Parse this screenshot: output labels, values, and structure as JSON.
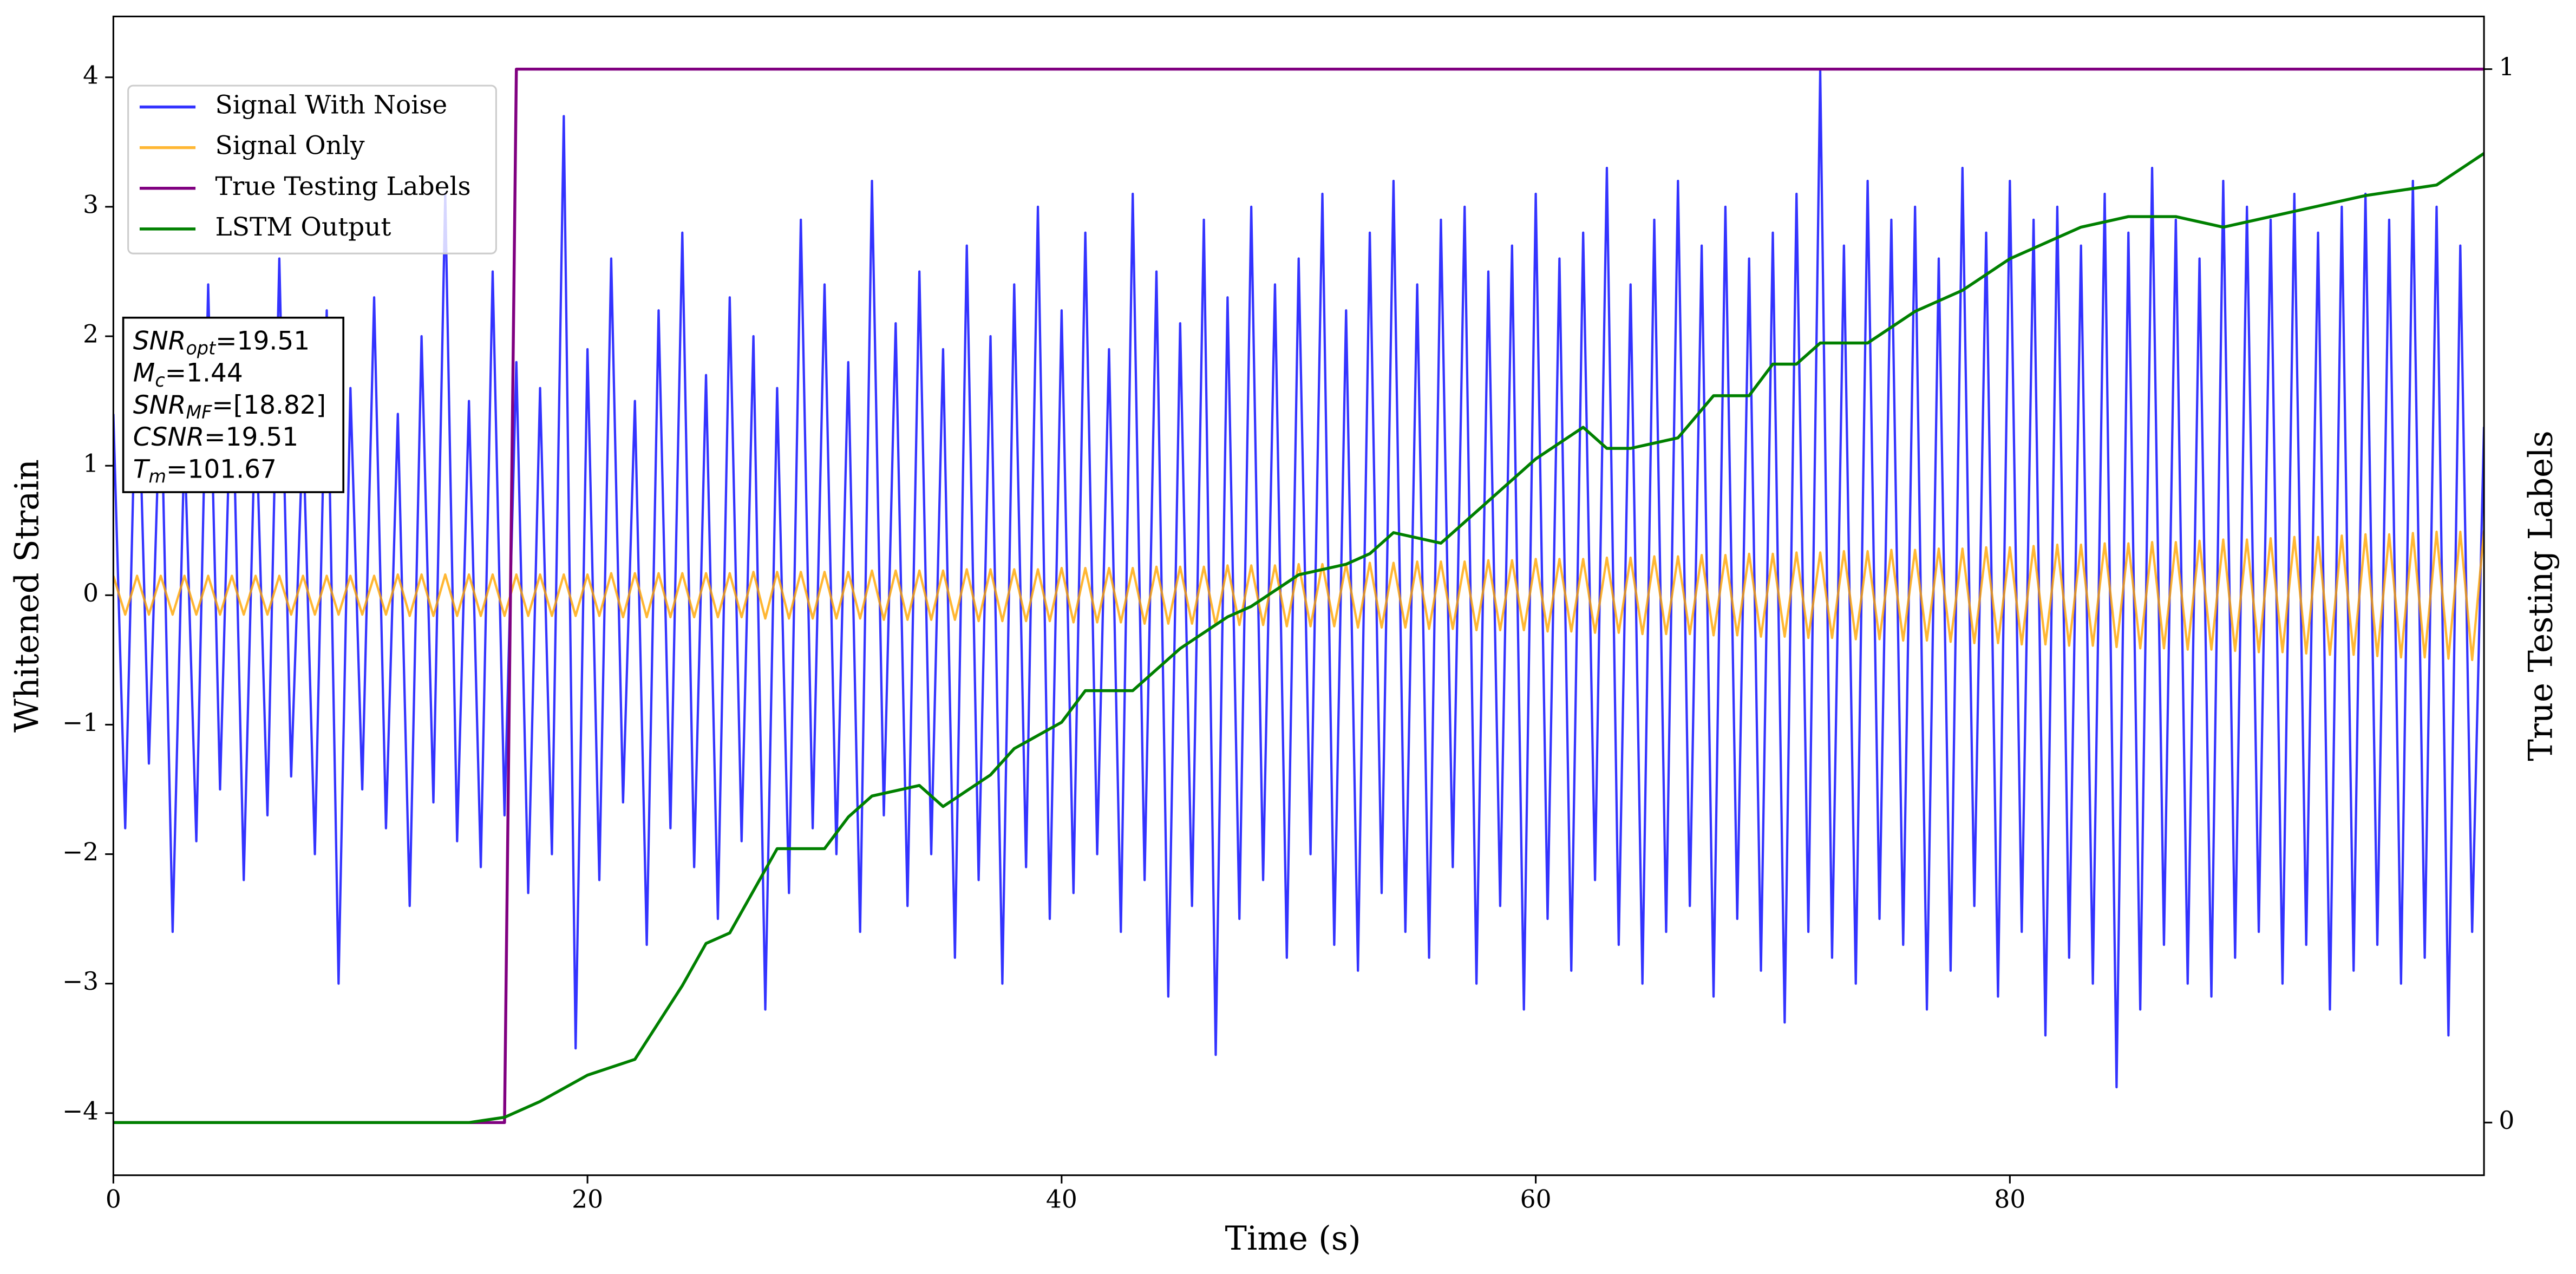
{
  "chart_data": {
    "type": "line",
    "xlabel": "Time (s)",
    "ylabel": "Whitened Strain",
    "y2label": "True Testing Labels",
    "xlim": [
      0,
      100
    ],
    "xticks": [
      0,
      20,
      40,
      60,
      80
    ],
    "ylim": [
      -4.48,
      4.47
    ],
    "yticks": [
      {
        "value": -4,
        "label": "−4"
      },
      {
        "value": -3,
        "label": "−3"
      },
      {
        "value": -2,
        "label": "−2"
      },
      {
        "value": -1,
        "label": "−1"
      },
      0,
      1,
      2,
      3,
      4
    ],
    "y2lim": [
      -0.05,
      1.05
    ],
    "y2ticks": [
      0,
      1
    ],
    "grid": false,
    "legend": "upper left",
    "annotation": [
      {
        "symbol": "SNR",
        "sub": "opt",
        "text": "=19.51"
      },
      {
        "symbol": "M",
        "sub": "c",
        "text": "=1.44"
      },
      {
        "symbol": "SNR",
        "sub": "MF",
        "text": "=[18.82]"
      },
      {
        "symbol": "CSNR",
        "text": "=19.51"
      },
      {
        "symbol": "T",
        "sub": "m",
        "text": "=101.67"
      }
    ],
    "x": [
      0,
      0.5,
      1,
      1.5,
      2,
      2.5,
      3,
      3.5,
      4,
      4.5,
      5,
      5.5,
      6,
      6.5,
      7,
      7.5,
      8,
      8.5,
      9,
      9.5,
      10,
      10.5,
      11,
      11.5,
      12,
      12.5,
      13,
      13.5,
      14,
      14.5,
      15,
      15.5,
      16,
      16.5,
      17,
      17.5,
      18,
      18.5,
      19,
      19.5,
      20,
      20.5,
      21,
      21.5,
      22,
      22.5,
      23,
      23.5,
      24,
      24.5,
      25,
      25.5,
      26,
      26.5,
      27,
      27.5,
      28,
      28.5,
      29,
      29.5,
      30,
      30.5,
      31,
      31.5,
      32,
      32.5,
      33,
      33.5,
      34,
      34.5,
      35,
      35.5,
      36,
      36.5,
      37,
      37.5,
      38,
      38.5,
      39,
      39.5,
      40,
      40.5,
      41,
      41.5,
      42,
      42.5,
      43,
      43.5,
      44,
      44.5,
      45,
      45.5,
      46,
      46.5,
      47,
      47.5,
      48,
      48.5,
      49,
      49.5,
      50,
      50.5,
      51,
      51.5,
      52,
      52.5,
      53,
      53.5,
      54,
      54.5,
      55,
      55.5,
      56,
      56.5,
      57,
      57.5,
      58,
      58.5,
      59,
      59.5,
      60,
      60.5,
      61,
      61.5,
      62,
      62.5,
      63,
      63.5,
      64,
      64.5,
      65,
      65.5,
      66,
      66.5,
      67,
      67.5,
      68,
      68.5,
      69,
      69.5,
      70,
      70.5,
      71,
      71.5,
      72,
      72.5,
      73,
      73.5,
      74,
      74.5,
      75,
      75.5,
      76,
      76.5,
      77,
      77.5,
      78,
      78.5,
      79,
      79.5,
      80,
      80.5,
      81,
      81.5,
      82,
      82.5,
      83,
      83.5,
      84,
      84.5,
      85,
      85.5,
      86,
      86.5,
      87,
      87.5,
      88,
      88.5,
      89,
      89.5,
      90,
      90.5,
      91,
      91.5,
      92,
      92.5,
      93,
      93.5,
      94,
      94.5,
      95,
      95.5,
      96,
      96.5,
      97,
      97.5,
      98,
      98.5,
      99,
      99.5,
      100
    ],
    "series": [
      {
        "name": "Signal With Noise",
        "color": "#0000ff",
        "values": [
          1.4,
          -1.8,
          2.1,
          -1.3,
          1.7,
          -2.6,
          1.2,
          -1.9,
          2.4,
          -1.5,
          1.9,
          -2.2,
          1.5,
          -1.7,
          2.6,
          -1.4,
          1.3,
          -2.0,
          2.2,
          -3.0,
          1.6,
          -1.5,
          2.3,
          -1.8,
          1.4,
          -2.4,
          2.0,
          -1.6,
          3.1,
          -1.9,
          1.5,
          -2.1,
          2.5,
          -1.7,
          1.8,
          -2.3,
          1.6,
          -2.0,
          3.7,
          -3.5,
          1.9,
          -2.2,
          2.6,
          -1.6,
          1.5,
          -2.7,
          2.2,
          -1.8,
          2.8,
          -2.1,
          1.7,
          -2.5,
          2.3,
          -1.9,
          2.0,
          -3.2,
          1.6,
          -2.3,
          2.9,
          -1.8,
          2.4,
          -2.0,
          1.8,
          -2.6,
          3.2,
          -1.7,
          2.1,
          -2.4,
          2.5,
          -2.0,
          1.9,
          -2.8,
          2.7,
          -2.2,
          2.0,
          -3.0,
          2.4,
          -2.1,
          3.0,
          -2.5,
          2.2,
          -2.3,
          2.8,
          -2.0,
          1.9,
          -2.6,
          3.1,
          -2.2,
          2.5,
          -3.1,
          2.1,
          -2.4,
          2.9,
          -3.55,
          2.3,
          -2.5,
          3.0,
          -2.2,
          2.4,
          -2.8,
          2.6,
          -2.0,
          3.1,
          -2.7,
          2.2,
          -2.9,
          2.8,
          -2.3,
          3.2,
          -2.6,
          2.4,
          -2.8,
          2.9,
          -2.1,
          3.0,
          -3.0,
          2.5,
          -2.4,
          2.7,
          -3.2,
          3.1,
          -2.5,
          2.6,
          -2.9,
          2.8,
          -2.2,
          3.3,
          -2.7,
          2.4,
          -3.0,
          2.9,
          -2.6,
          3.2,
          -2.4,
          2.7,
          -3.1,
          3.0,
          -2.5,
          2.6,
          -2.9,
          2.8,
          -3.3,
          3.1,
          -2.6,
          4.05,
          -2.8,
          2.7,
          -3.0,
          3.2,
          -2.5,
          2.9,
          -2.7,
          3.0,
          -3.2,
          2.6,
          -2.9,
          3.3,
          -2.4,
          2.8,
          -3.1,
          3.2,
          -2.6,
          2.9,
          -3.4,
          3.0,
          -2.8,
          2.7,
          -3.0,
          3.1,
          -3.8,
          2.8,
          -3.2,
          3.3,
          -2.7,
          2.9,
          -3.0,
          2.6,
          -3.1,
          3.2,
          -2.8,
          3.0,
          -2.6,
          2.9,
          -3.0,
          3.1,
          -2.7,
          2.8,
          -3.2,
          3.0,
          -2.9,
          3.1,
          -2.7,
          2.9,
          -3.0,
          3.2,
          -2.8,
          3.0,
          -3.4,
          2.7,
          -2.6,
          1.3
        ]
      },
      {
        "name": "Signal Only",
        "color": "#ffa500",
        "values": [
          0.15,
          -0.15,
          0.15,
          -0.15,
          0.15,
          -0.15,
          0.15,
          -0.15,
          0.15,
          -0.15,
          0.15,
          -0.15,
          0.15,
          -0.15,
          0.15,
          -0.15,
          0.15,
          -0.15,
          0.15,
          -0.15,
          0.15,
          -0.15,
          0.15,
          -0.15,
          0.16,
          -0.16,
          0.16,
          -0.16,
          0.16,
          -0.16,
          0.16,
          -0.16,
          0.16,
          -0.16,
          0.16,
          -0.16,
          0.16,
          -0.16,
          0.16,
          -0.16,
          0.16,
          -0.16,
          0.17,
          -0.17,
          0.17,
          -0.17,
          0.17,
          -0.17,
          0.17,
          -0.17,
          0.17,
          -0.17,
          0.17,
          -0.17,
          0.18,
          -0.18,
          0.18,
          -0.18,
          0.18,
          -0.18,
          0.18,
          -0.18,
          0.18,
          -0.18,
          0.19,
          -0.19,
          0.19,
          -0.19,
          0.19,
          -0.19,
          0.19,
          -0.19,
          0.2,
          -0.2,
          0.2,
          -0.2,
          0.2,
          -0.2,
          0.2,
          -0.2,
          0.21,
          -0.21,
          0.21,
          -0.21,
          0.21,
          -0.21,
          0.21,
          -0.22,
          0.22,
          -0.22,
          0.22,
          -0.22,
          0.22,
          -0.23,
          0.23,
          -0.23,
          0.23,
          -0.23,
          0.23,
          -0.24,
          0.24,
          -0.24,
          0.24,
          -0.24,
          0.24,
          -0.25,
          0.25,
          -0.25,
          0.25,
          -0.25,
          0.26,
          -0.26,
          0.26,
          -0.26,
          0.26,
          -0.27,
          0.27,
          -0.27,
          0.27,
          -0.27,
          0.28,
          -0.28,
          0.28,
          -0.28,
          0.28,
          -0.29,
          0.29,
          -0.29,
          0.29,
          -0.3,
          0.3,
          -0.3,
          0.3,
          -0.3,
          0.31,
          -0.31,
          0.31,
          -0.31,
          0.32,
          -0.32,
          0.32,
          -0.32,
          0.33,
          -0.33,
          0.33,
          -0.33,
          0.34,
          -0.34,
          0.34,
          -0.34,
          0.35,
          -0.35,
          0.35,
          -0.35,
          0.36,
          -0.36,
          0.36,
          -0.37,
          0.37,
          -0.37,
          0.37,
          -0.38,
          0.38,
          -0.38,
          0.39,
          -0.39,
          0.39,
          -0.39,
          0.4,
          -0.4,
          0.4,
          -0.41,
          0.41,
          -0.41,
          0.41,
          -0.42,
          0.42,
          -0.42,
          0.43,
          -0.43,
          0.43,
          -0.44,
          0.44,
          -0.44,
          0.45,
          -0.45,
          0.45,
          -0.46,
          0.46,
          -0.46,
          0.47,
          -0.47,
          0.47,
          -0.48,
          0.48,
          -0.48,
          0.49,
          -0.49,
          0.49,
          -0.5,
          0.5
        ]
      },
      {
        "name": "True Testing Labels",
        "color": "#800080",
        "axis": "y2",
        "x": [
          0,
          16.5,
          17,
          100
        ],
        "values": [
          0,
          0,
          1,
          1
        ]
      },
      {
        "name": "LSTM Output",
        "color": "#008000",
        "axis": "y2",
        "x": [
          0,
          15,
          16.5,
          18,
          20,
          22,
          24,
          25,
          26,
          27,
          28,
          30,
          31,
          32,
          34,
          35,
          37,
          38,
          40,
          41,
          43,
          45,
          47,
          48,
          50,
          52,
          53,
          54,
          56,
          58,
          60,
          62,
          63,
          64,
          66,
          67.5,
          69,
          70,
          71,
          72,
          74,
          76,
          78,
          80,
          81,
          83,
          85,
          87,
          89,
          91,
          93,
          95,
          98,
          100
        ],
        "values": [
          0,
          0,
          0.005,
          0.02,
          0.045,
          0.06,
          0.13,
          0.17,
          0.18,
          0.22,
          0.26,
          0.26,
          0.29,
          0.31,
          0.32,
          0.3,
          0.33,
          0.355,
          0.38,
          0.41,
          0.41,
          0.45,
          0.48,
          0.49,
          0.52,
          0.53,
          0.54,
          0.56,
          0.55,
          0.59,
          0.63,
          0.66,
          0.64,
          0.64,
          0.65,
          0.69,
          0.69,
          0.72,
          0.72,
          0.74,
          0.74,
          0.77,
          0.79,
          0.82,
          0.83,
          0.85,
          0.86,
          0.86,
          0.85,
          0.86,
          0.87,
          0.88,
          0.89,
          0.92
        ]
      }
    ]
  }
}
